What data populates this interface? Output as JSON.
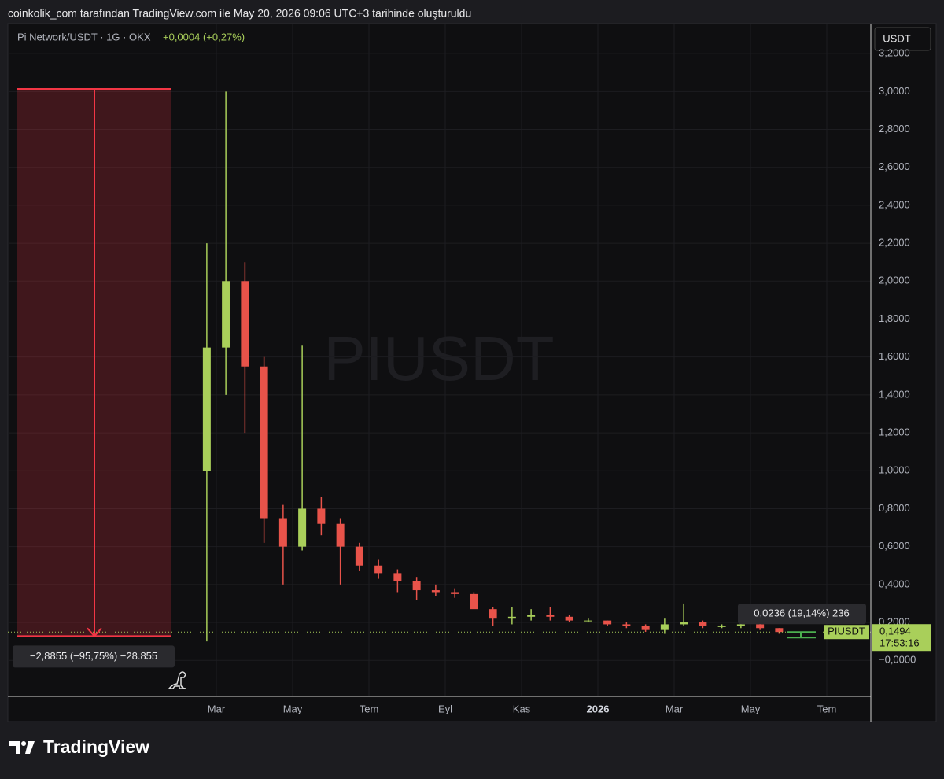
{
  "header": "coinkolik_com tarafından TradingView.com ile May 20, 2026 09:06 UTC+3 tarihinde oluşturuldu",
  "footer": "TradingView",
  "chart_data": {
    "type": "candlestick",
    "title": "Pi Network/USDT · 1G · OKX",
    "change": "+0,0004 (+0,27%)",
    "currency": "USDT",
    "watermark": "PIUSDT",
    "up_color": "#a9cf5a",
    "down_color": "#e8534a",
    "grid": true,
    "categories": [
      null,
      "Mar",
      null,
      null,
      null,
      "May",
      null,
      null,
      null,
      "Tem",
      null,
      null,
      null,
      "Eyl",
      null,
      null,
      null,
      "Kas",
      null,
      null,
      null,
      "2026",
      null,
      null,
      null,
      "Mar",
      null,
      null,
      null,
      "May",
      null,
      null,
      null,
      "Tem",
      null,
      null
    ],
    "open": [
      1.0,
      1.65,
      2.0,
      1.55,
      0.75,
      0.6,
      0.8,
      0.72,
      0.6,
      0.5,
      0.46,
      0.42,
      0.37,
      0.36,
      0.35,
      0.27,
      0.22,
      0.23,
      0.24,
      0.23,
      0.21,
      0.21,
      0.19,
      0.18,
      0.16,
      0.19,
      0.2,
      0.18,
      0.18,
      0.19,
      0.17,
      null,
      null,
      null,
      null,
      null
    ],
    "high": [
      2.2,
      3.0,
      2.1,
      1.6,
      0.82,
      1.66,
      0.86,
      0.75,
      0.62,
      0.53,
      0.48,
      0.44,
      0.4,
      0.38,
      0.36,
      0.28,
      0.28,
      0.27,
      0.28,
      0.24,
      0.22,
      0.21,
      0.2,
      0.19,
      0.22,
      0.3,
      0.21,
      0.19,
      0.2,
      0.2,
      0.17,
      null,
      null,
      null,
      null,
      null
    ],
    "low": [
      0.1,
      1.4,
      1.2,
      0.62,
      0.4,
      0.58,
      0.66,
      0.4,
      0.47,
      0.43,
      0.36,
      0.32,
      0.34,
      0.33,
      0.28,
      0.18,
      0.19,
      0.21,
      0.21,
      0.2,
      0.2,
      0.18,
      0.17,
      0.15,
      0.14,
      0.18,
      0.17,
      0.17,
      0.17,
      0.16,
      0.14,
      null,
      null,
      null,
      null,
      null
    ],
    "close": [
      1.65,
      2.0,
      1.55,
      0.75,
      0.6,
      0.8,
      0.72,
      0.6,
      0.5,
      0.46,
      0.42,
      0.37,
      0.36,
      0.35,
      0.27,
      0.22,
      0.23,
      0.24,
      0.23,
      0.21,
      0.21,
      0.19,
      0.18,
      0.16,
      0.19,
      0.2,
      0.18,
      0.18,
      0.19,
      0.17,
      0.1494,
      null,
      null,
      null,
      null,
      null
    ],
    "ylim": [
      -0.19,
      3.35
    ],
    "yticks": [
      {
        "value": 0,
        "label": "−0,0000"
      },
      {
        "value": 0.2,
        "label": "0,2000"
      },
      {
        "value": 0.4,
        "label": "0,4000"
      },
      {
        "value": 0.6,
        "label": "0,6000"
      },
      {
        "value": 0.8,
        "label": "0,8000"
      },
      {
        "value": 1.0,
        "label": "1,0000"
      },
      {
        "value": 1.2,
        "label": "1,2000"
      },
      {
        "value": 1.4,
        "label": "1,4000"
      },
      {
        "value": 1.6,
        "label": "1,6000"
      },
      {
        "value": 1.8,
        "label": "1,8000"
      },
      {
        "value": 2.0,
        "label": "2,0000"
      },
      {
        "value": 2.2,
        "label": "2,2000"
      },
      {
        "value": 2.4,
        "label": "2,4000"
      },
      {
        "value": 2.6,
        "label": "2,6000"
      },
      {
        "value": 2.8,
        "label": "2,8000"
      },
      {
        "value": 3.0,
        "label": "3,0000"
      },
      {
        "value": 3.2,
        "label": "3,2000"
      }
    ],
    "last_price": {
      "value": 0.1494,
      "label": "0,1494",
      "symbol": "PIUSDT",
      "countdown": "17:53:16"
    },
    "measure": {
      "from": 3.0136,
      "to": 0.1281,
      "label": "−2,8855 (−95,75%) −28.855"
    },
    "measure_small": "0,0236 (19,14%) 236"
  }
}
